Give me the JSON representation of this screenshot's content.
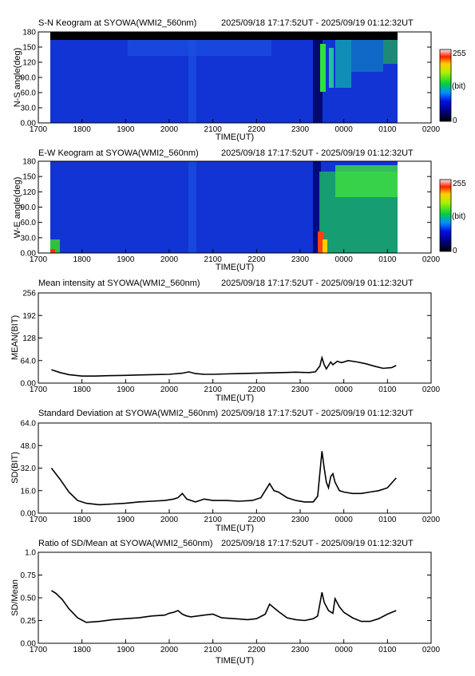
{
  "station": "SYOWA",
  "charts": [
    {
      "id": "sn-keogram",
      "type": "heatmap",
      "title": "S-N Keogram at SYOWA(WMI2_560nm)",
      "time_range": "2025/09/18 17:17:52UT - 2025/09/19 01:12:32UT",
      "ylabel": "N-S angle(deg)",
      "xlabel": "TIME(UT)",
      "yticks": [
        "0.00",
        "30.0",
        "60.0",
        "90.0",
        "120",
        "150",
        "180"
      ],
      "ylim": [
        0,
        180
      ],
      "colorbar": {
        "max_label": "255",
        "unit_label": "(bit)",
        "min_label": "0"
      }
    },
    {
      "id": "ew-keogram",
      "type": "heatmap",
      "title": "E-W Keogram at SYOWA(WMI2_560nm)",
      "time_range": "2025/09/18 17:17:52UT - 2025/09/19 01:12:32UT",
      "ylabel": "W-E angle(deg)",
      "xlabel": "TIME(UT)",
      "yticks": [
        "0.00",
        "30.0",
        "60.0",
        "90.0",
        "120",
        "150",
        "180"
      ],
      "ylim": [
        0,
        180
      ],
      "colorbar": {
        "max_label": "255",
        "unit_label": "(bit)",
        "min_label": "0"
      }
    },
    {
      "id": "mean-intensity",
      "type": "line",
      "title": "Mean intensity at SYOWA(WMI2_560nm)",
      "time_range": "2025/09/18 17:17:52UT - 2025/09/19 01:12:32UT",
      "ylabel": "MEAN(BIT)",
      "xlabel": "TIME(UT)",
      "yticks": [
        "0.00",
        "64.0",
        "128",
        "192",
        "256"
      ],
      "ylim": [
        0,
        256
      ],
      "x": [
        17.3,
        17.5,
        17.7,
        18.0,
        18.3,
        18.6,
        19.0,
        19.3,
        19.6,
        20.0,
        20.3,
        20.45,
        20.6,
        20.8,
        21.0,
        21.3,
        21.6,
        22.0,
        22.3,
        22.6,
        22.9,
        23.2,
        23.35,
        23.45,
        23.5,
        23.55,
        23.6,
        23.7,
        23.75,
        23.85,
        23.95,
        24.1,
        24.3,
        24.5,
        24.7,
        24.9,
        25.1,
        25.2
      ],
      "series": [
        {
          "values": [
            38,
            30,
            24,
            20,
            20,
            21,
            22,
            23,
            24,
            25,
            28,
            32,
            27,
            25,
            25,
            26,
            27,
            28,
            29,
            30,
            31,
            30,
            32,
            48,
            72,
            52,
            40,
            60,
            52,
            62,
            58,
            64,
            60,
            55,
            48,
            42,
            44,
            50
          ]
        }
      ]
    },
    {
      "id": "standard-deviation",
      "type": "line",
      "title": "Standard Deviation at SYOWA(WMI2_560nm)",
      "time_range": "2025/09/18 17:17:52UT - 2025/09/19 01:12:32UT",
      "ylabel": "SD(BIT)",
      "xlabel": "TIME(UT)",
      "yticks": [
        "0.00",
        "16.0",
        "32.0",
        "48.0",
        "64.0"
      ],
      "ylim": [
        0,
        64
      ],
      "x": [
        17.3,
        17.5,
        17.7,
        17.9,
        18.1,
        18.4,
        18.7,
        19.0,
        19.3,
        19.6,
        19.9,
        20.0,
        20.1,
        20.2,
        20.3,
        20.4,
        20.5,
        20.6,
        20.8,
        21.0,
        21.3,
        21.6,
        21.9,
        22.1,
        22.3,
        22.4,
        22.5,
        22.7,
        22.9,
        23.1,
        23.3,
        23.4,
        23.5,
        23.55,
        23.6,
        23.65,
        23.7,
        23.75,
        23.8,
        23.9,
        24.0,
        24.2,
        24.4,
        24.6,
        24.8,
        25.0,
        25.2
      ],
      "series": [
        {
          "values": [
            32,
            24,
            15,
            9,
            7,
            6,
            6.5,
            7,
            8,
            8.5,
            9,
            9.5,
            10,
            11,
            14,
            10,
            9,
            8,
            10,
            9,
            9,
            8.5,
            9,
            11,
            21,
            16,
            15,
            11,
            9,
            8,
            8,
            12,
            44,
            32,
            22,
            18,
            26,
            28,
            22,
            16,
            15,
            14,
            14,
            15,
            16,
            18,
            25
          ]
        }
      ]
    },
    {
      "id": "ratio-sd-mean",
      "type": "line",
      "title": "Ratio of SD/Mean at SYOWA(WMI2_560nm)",
      "time_range": "2025/09/18 17:17:52UT - 2025/09/19 01:12:32UT",
      "ylabel": "SD/Mean",
      "xlabel": "TIME(UT)",
      "yticks": [
        "0.00",
        "0.25",
        "0.50",
        "0.75",
        "1.0"
      ],
      "ylim": [
        0,
        1.0
      ],
      "x": [
        17.3,
        17.4,
        17.55,
        17.7,
        17.9,
        18.1,
        18.4,
        18.7,
        19.0,
        19.3,
        19.6,
        19.9,
        20.0,
        20.1,
        20.2,
        20.3,
        20.4,
        20.5,
        20.8,
        21.0,
        21.2,
        21.5,
        21.8,
        22.0,
        22.2,
        22.3,
        22.5,
        22.7,
        22.9,
        23.1,
        23.3,
        23.4,
        23.5,
        23.55,
        23.65,
        23.75,
        23.8,
        23.9,
        24.0,
        24.2,
        24.4,
        24.6,
        24.8,
        25.0,
        25.2
      ],
      "series": [
        {
          "values": [
            0.58,
            0.55,
            0.48,
            0.38,
            0.28,
            0.23,
            0.24,
            0.26,
            0.27,
            0.28,
            0.3,
            0.31,
            0.33,
            0.34,
            0.36,
            0.32,
            0.3,
            0.29,
            0.31,
            0.32,
            0.28,
            0.27,
            0.26,
            0.27,
            0.32,
            0.43,
            0.35,
            0.28,
            0.26,
            0.25,
            0.27,
            0.3,
            0.56,
            0.45,
            0.36,
            0.33,
            0.49,
            0.4,
            0.34,
            0.28,
            0.24,
            0.24,
            0.27,
            0.32,
            0.36
          ]
        }
      ]
    }
  ],
  "x_axis": {
    "ticks": [
      17,
      18,
      19,
      20,
      21,
      22,
      23,
      24,
      25,
      26
    ],
    "tick_labels": [
      "1700",
      "1800",
      "1900",
      "2000",
      "2100",
      "2200",
      "2300",
      "0000",
      "0100",
      "0200"
    ],
    "xlim_hours": [
      17,
      26
    ]
  }
}
